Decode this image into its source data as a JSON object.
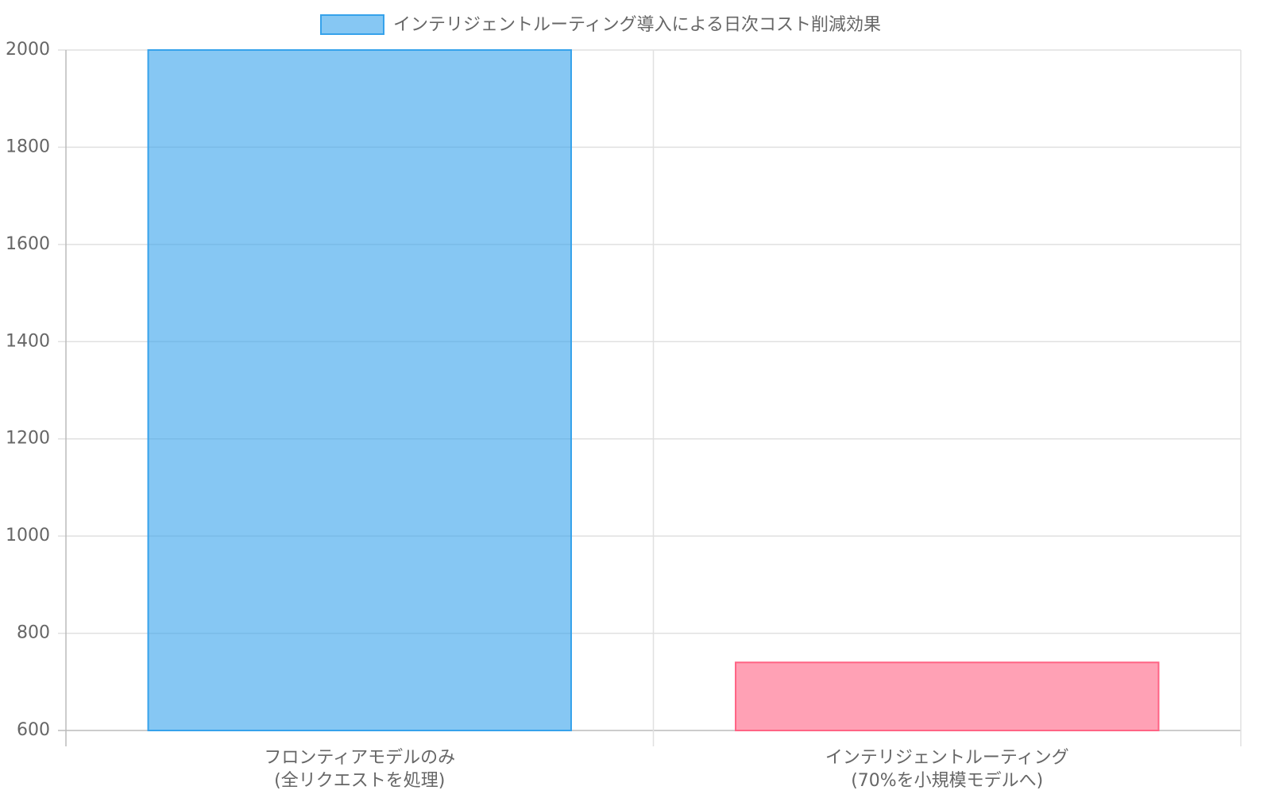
{
  "chart_data": {
    "type": "bar",
    "categories": [
      [
        "フロンティアモデルのみ",
        "(全リクエストを処理)"
      ],
      [
        "インテリジェントルーティング",
        "(70%を小規模モデルへ)"
      ]
    ],
    "series": [
      {
        "name": "インテリジェントルーティング導入による日次コスト削減効果",
        "colors": [
          "rgba(54,162,235,0.6)",
          "rgba(255,99,132,0.6)"
        ],
        "border_colors": [
          "#36a2eb",
          "#ff6384"
        ],
        "values": [
          2000,
          740
        ]
      }
    ],
    "ylim": [
      600,
      2000
    ],
    "yticks": [
      600,
      800,
      1000,
      1200,
      1400,
      1600,
      1800,
      2000
    ],
    "grid": true
  }
}
